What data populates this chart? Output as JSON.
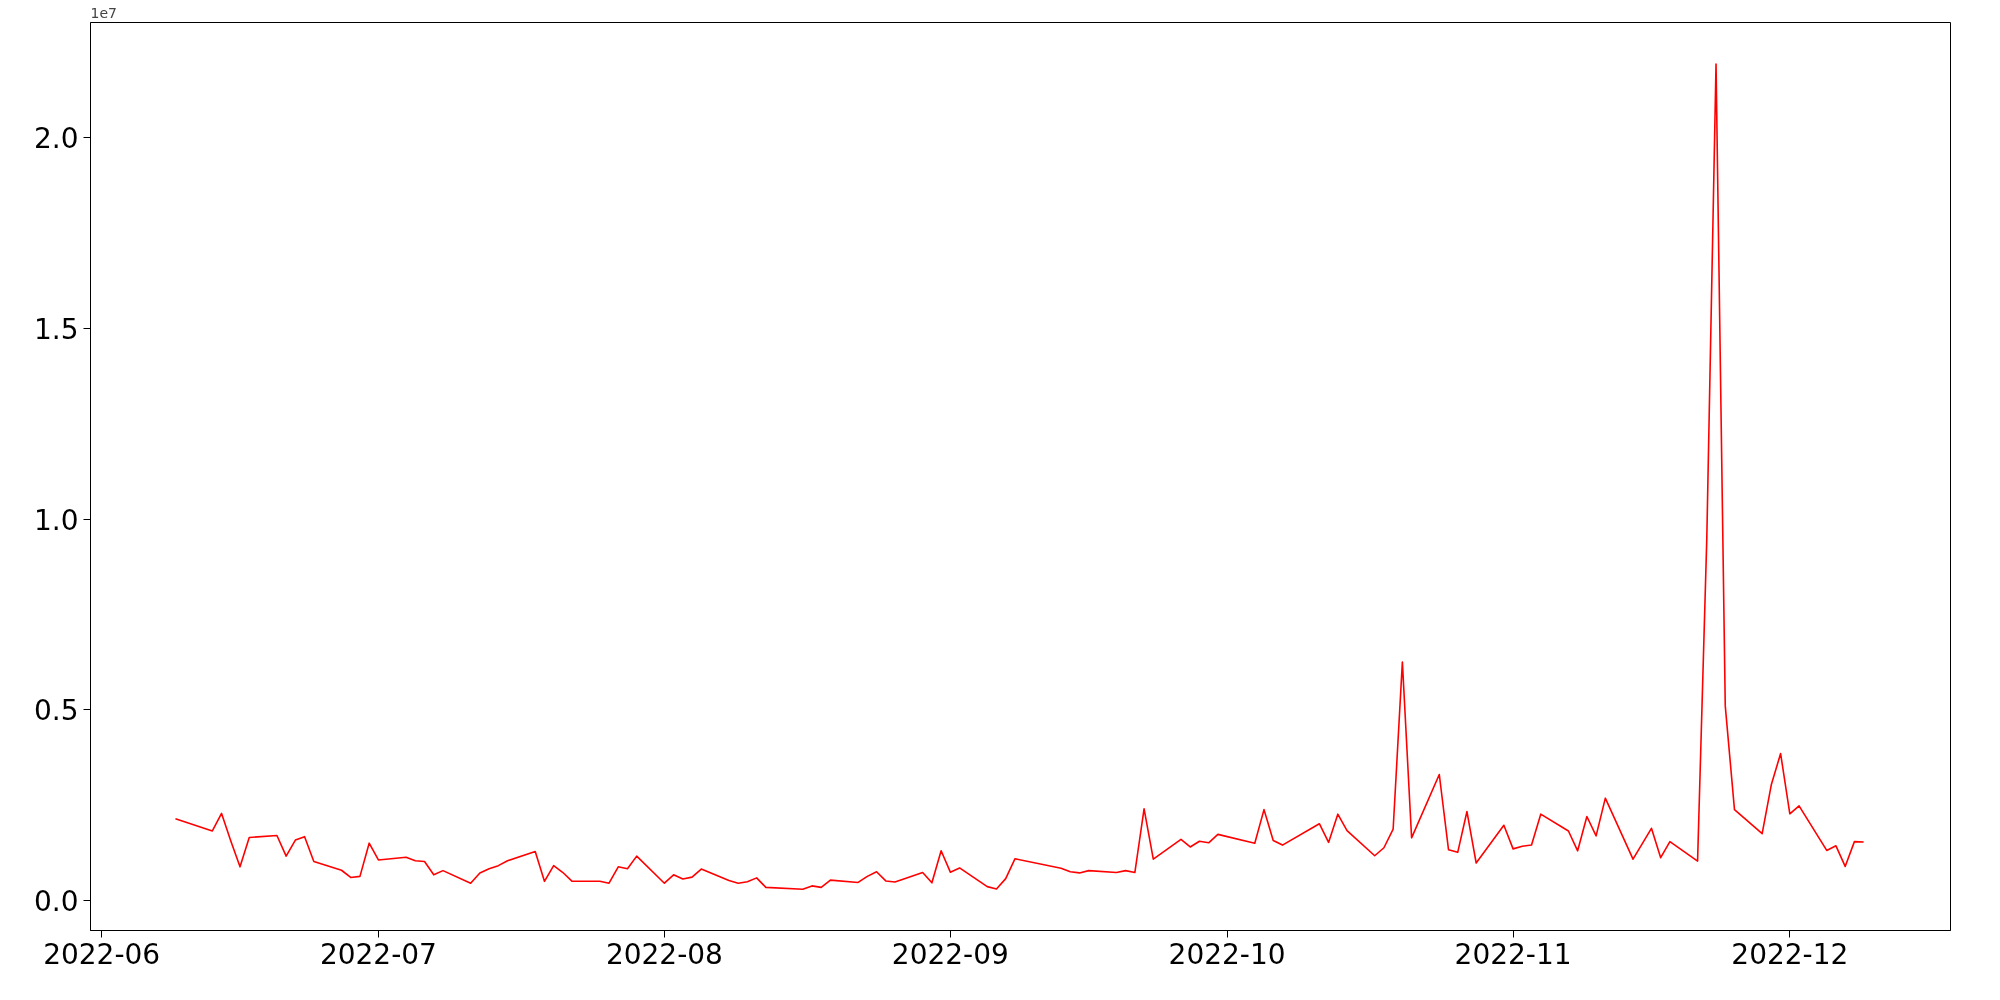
{
  "chart_data": {
    "type": "line",
    "annotations": [
      "1e7"
    ],
    "x": [
      "2022-06-09",
      "2022-06-13",
      "2022-06-14",
      "2022-06-15",
      "2022-06-16",
      "2022-06-17",
      "2022-06-20",
      "2022-06-21",
      "2022-06-22",
      "2022-06-23",
      "2022-06-24",
      "2022-06-27",
      "2022-06-28",
      "2022-06-29",
      "2022-06-30",
      "2022-07-01",
      "2022-07-04",
      "2022-07-05",
      "2022-07-06",
      "2022-07-07",
      "2022-07-08",
      "2022-07-11",
      "2022-07-12",
      "2022-07-13",
      "2022-07-14",
      "2022-07-15",
      "2022-07-18",
      "2022-07-19",
      "2022-07-20",
      "2022-07-21",
      "2022-07-22",
      "2022-07-25",
      "2022-07-26",
      "2022-07-27",
      "2022-07-28",
      "2022-07-29",
      "2022-08-01",
      "2022-08-02",
      "2022-08-03",
      "2022-08-04",
      "2022-08-05",
      "2022-08-08",
      "2022-08-09",
      "2022-08-10",
      "2022-08-11",
      "2022-08-12",
      "2022-08-16",
      "2022-08-17",
      "2022-08-18",
      "2022-08-19",
      "2022-08-22",
      "2022-08-23",
      "2022-08-24",
      "2022-08-25",
      "2022-08-26",
      "2022-08-29",
      "2022-08-30",
      "2022-08-31",
      "2022-09-01",
      "2022-09-02",
      "2022-09-05",
      "2022-09-06",
      "2022-09-07",
      "2022-09-08",
      "2022-09-13",
      "2022-09-14",
      "2022-09-15",
      "2022-09-16",
      "2022-09-19",
      "2022-09-20",
      "2022-09-21",
      "2022-09-22",
      "2022-09-23",
      "2022-09-26",
      "2022-09-27",
      "2022-09-28",
      "2022-09-29",
      "2022-09-30",
      "2022-10-04",
      "2022-10-05",
      "2022-10-06",
      "2022-10-07",
      "2022-10-11",
      "2022-10-12",
      "2022-10-13",
      "2022-10-14",
      "2022-10-17",
      "2022-10-18",
      "2022-10-19",
      "2022-10-20",
      "2022-10-21",
      "2022-10-24",
      "2022-10-25",
      "2022-10-26",
      "2022-10-27",
      "2022-10-28",
      "2022-10-31",
      "2022-11-01",
      "2022-11-02",
      "2022-11-03",
      "2022-11-04",
      "2022-11-07",
      "2022-11-08",
      "2022-11-09",
      "2022-11-10",
      "2022-11-11",
      "2022-11-14",
      "2022-11-16",
      "2022-11-17",
      "2022-11-18",
      "2022-11-21",
      "2022-11-22",
      "2022-11-23",
      "2022-11-24",
      "2022-11-25",
      "2022-11-28",
      "2022-11-29",
      "2022-11-30",
      "2022-12-01",
      "2022-12-02",
      "2022-12-05",
      "2022-12-06",
      "2022-12-07",
      "2022-12-08",
      "2022-12-09"
    ],
    "series": [
      {
        "color": "#ff0000",
        "values": [
          0.214,
          0.182,
          0.228,
          0.156,
          0.088,
          0.165,
          0.17,
          0.116,
          0.158,
          0.167,
          0.102,
          0.079,
          0.06,
          0.063,
          0.15,
          0.106,
          0.113,
          0.104,
          0.102,
          0.067,
          0.078,
          0.045,
          0.072,
          0.083,
          0.091,
          0.104,
          0.128,
          0.05,
          0.091,
          0.073,
          0.05,
          0.05,
          0.045,
          0.088,
          0.083,
          0.116,
          0.045,
          0.067,
          0.056,
          0.061,
          0.082,
          0.052,
          0.045,
          0.049,
          0.059,
          0.034,
          0.029,
          0.038,
          0.034,
          0.053,
          0.047,
          0.063,
          0.075,
          0.051,
          0.048,
          0.073,
          0.046,
          0.13,
          0.074,
          0.085,
          0.036,
          0.03,
          0.057,
          0.109,
          0.084,
          0.075,
          0.072,
          0.078,
          0.073,
          0.078,
          0.073,
          0.24,
          0.108,
          0.16,
          0.14,
          0.155,
          0.151,
          0.173,
          0.15,
          0.238,
          0.157,
          0.145,
          0.201,
          0.152,
          0.226,
          0.183,
          0.117,
          0.138,
          0.187,
          0.625,
          0.164,
          0.33,
          0.133,
          0.126,
          0.233,
          0.098,
          0.197,
          0.135,
          0.142,
          0.145,
          0.226,
          0.182,
          0.13,
          0.22,
          0.169,
          0.268,
          0.108,
          0.189,
          0.112,
          0.154,
          0.103,
          0.95,
          2.193,
          0.51,
          0.238,
          0.175,
          0.304,
          0.385,
          0.227,
          0.248,
          0.131,
          0.143,
          0.089,
          0.154,
          0.153
        ]
      }
    ],
    "xlim": [
      "2022-05-30T19:00",
      "2022-12-18T10:00"
    ],
    "xticks": [
      {
        "value": "2022-06-01",
        "label": "2022-06"
      },
      {
        "value": "2022-07-01",
        "label": "2022-07"
      },
      {
        "value": "2022-08-01",
        "label": "2022-08"
      },
      {
        "value": "2022-09-01",
        "label": "2022-09"
      },
      {
        "value": "2022-10-01",
        "label": "2022-10"
      },
      {
        "value": "2022-11-01",
        "label": "2022-11"
      },
      {
        "value": "2022-12-01",
        "label": "2022-12"
      }
    ],
    "ylim": [
      -0.079,
      2.302
    ],
    "yticks": [
      {
        "value": 0,
        "label": "0.0"
      },
      {
        "value": 0.5,
        "label": "0.5"
      },
      {
        "value": 1.0,
        "label": "1.0"
      },
      {
        "value": 1.5,
        "label": "1.5"
      },
      {
        "value": 2.0,
        "label": "2.0"
      }
    ],
    "grid": false,
    "marker": "none",
    "line_style": "solid"
  }
}
